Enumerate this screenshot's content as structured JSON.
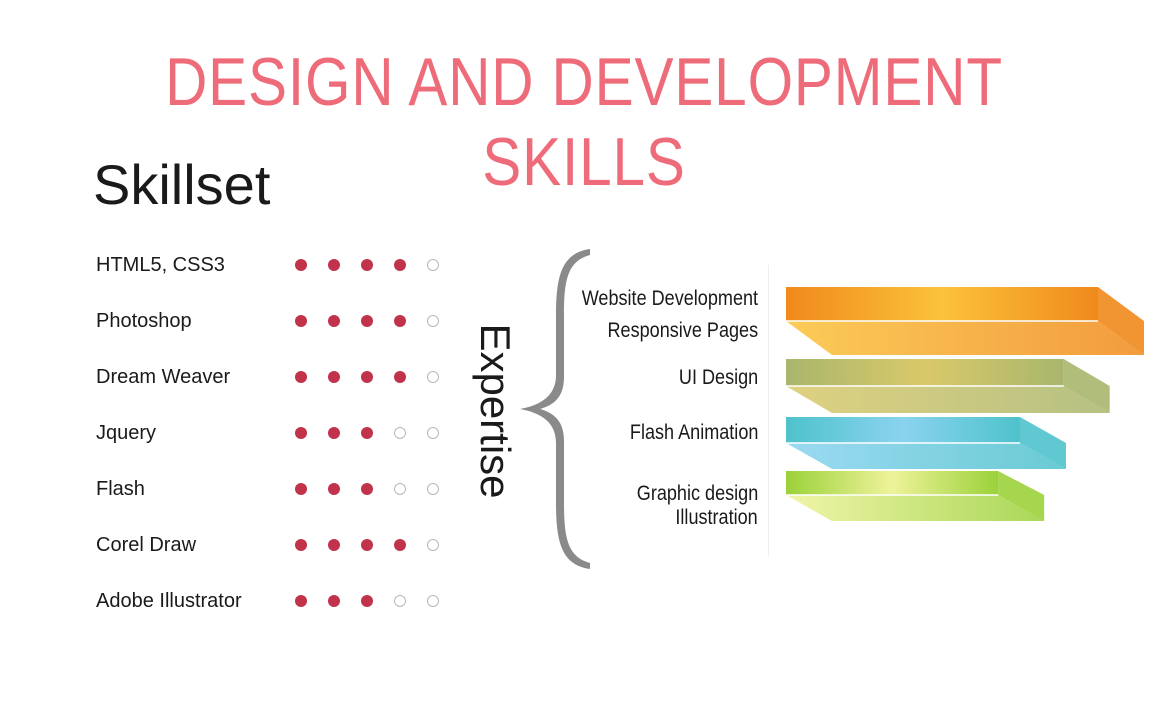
{
  "title": "DESIGN AND DEVELOPMENT SKILLS",
  "skillset": {
    "heading": "Skillset",
    "scale_max": 5,
    "skills": [
      {
        "label": "HTML5, CSS3",
        "level": 4
      },
      {
        "label": "Photoshop",
        "level": 4
      },
      {
        "label": "Dream Weaver",
        "level": 4
      },
      {
        "label": "Jquery",
        "level": 3
      },
      {
        "label": "Flash",
        "level": 3
      },
      {
        "label": "Corel Draw",
        "level": 4
      },
      {
        "label": "Adobe Illustrator",
        "level": 3
      }
    ]
  },
  "expertise": {
    "heading": "Expertise",
    "items": [
      {
        "line1": "Website Development",
        "line2": "Responsive Pages",
        "level": 1.0,
        "color_light": "#fbc23a",
        "color_dark": "#f08a1c"
      },
      {
        "line1": "UI Design",
        "line2": "",
        "level": 0.89,
        "color_light": "#d9c96a",
        "color_dark": "#a9b66d"
      },
      {
        "line1": "Flash Animation",
        "line2": "",
        "level": 0.75,
        "color_light": "#8ad3ef",
        "color_dark": "#4fc2cc"
      },
      {
        "line1": "Graphic design",
        "line2": "Illustration",
        "level": 0.68,
        "color_light": "#eef39a",
        "color_dark": "#9bd13a"
      }
    ]
  },
  "colors": {
    "title": "#ee6b7a",
    "dot_filled": "#c0334a",
    "dot_empty_border": "#b8b8b8"
  }
}
